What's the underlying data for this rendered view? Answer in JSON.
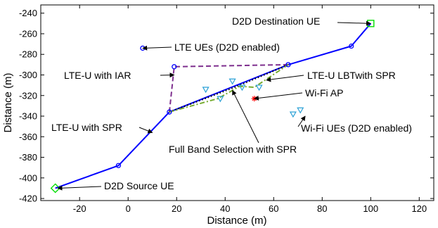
{
  "chart_data": {
    "type": "scatter",
    "xlabel": "Distance (m)",
    "ylabel": "Distance (m)",
    "xlim": [
      -36,
      126
    ],
    "ylim": [
      -422,
      -232
    ],
    "x_ticks": [
      -20,
      0,
      20,
      40,
      60,
      80,
      100,
      120
    ],
    "y_ticks": [
      -420,
      -400,
      -380,
      -360,
      -340,
      -320,
      -300,
      -280,
      -260,
      -240
    ],
    "grid": false,
    "colors": {
      "lte_u_spr": "#0000ff",
      "lte_u_iar": "#7e2f8e",
      "full_band": "#000000",
      "lbt_spr": "#77ac30",
      "wifi_ue": "#2ba1d6",
      "wifi_ap": "#ff0000",
      "endpoint": "#00dd00"
    },
    "series": [
      {
        "name": "LTE-U with SPR",
        "style": "solid",
        "points": [
          [
            -30,
            -410
          ],
          [
            -4,
            -388
          ],
          [
            17,
            -336
          ],
          [
            66,
            -290
          ],
          [
            92,
            -272
          ],
          [
            100,
            -250
          ]
        ]
      },
      {
        "name": "LTE-U with IAR",
        "style": "dashed",
        "points": [
          [
            17,
            -336
          ],
          [
            19,
            -292
          ],
          [
            66,
            -290
          ]
        ]
      },
      {
        "name": "Full Band Selection with SPR",
        "style": "dotted",
        "points": [
          [
            17,
            -336
          ],
          [
            45,
            -311
          ],
          [
            66,
            -290
          ]
        ]
      },
      {
        "name": "LTE-U LBTwith SPR",
        "style": "dashdot",
        "points": [
          [
            17,
            -336
          ],
          [
            37,
            -323
          ],
          [
            46,
            -311
          ],
          [
            52,
            -312
          ],
          [
            66,
            -290
          ]
        ]
      }
    ],
    "lte_ues": [
      [
        6,
        -274
      ],
      [
        19,
        -292
      ],
      [
        66,
        -290
      ],
      [
        92,
        -272
      ]
    ],
    "wifi_ues": [
      [
        32,
        -314
      ],
      [
        38,
        -323
      ],
      [
        43,
        -306
      ],
      [
        47,
        -312
      ],
      [
        54,
        -312
      ],
      [
        68,
        -338
      ],
      [
        71,
        -334
      ]
    ],
    "wifi_ap": [
      52,
      -323
    ],
    "source_ue": [
      -30,
      -410
    ],
    "destination_ue": [
      100,
      -250
    ],
    "annotations": [
      {
        "label": "D2D Destination UE",
        "target": [
          100,
          -250
        ]
      },
      {
        "label": "LTE UEs (D2D enabled)",
        "target": [
          6,
          -274
        ]
      },
      {
        "label": "LTE-U with IAR",
        "target": [
          19,
          -300
        ]
      },
      {
        "label": "LTE-U LBTwith SPR",
        "target": [
          57,
          -305
        ]
      },
      {
        "label": "Wi-Fi AP",
        "target": [
          52,
          -323
        ]
      },
      {
        "label": "LTE-U with SPR",
        "target": [
          10,
          -356
        ]
      },
      {
        "label": "Wi-Fi UEs (D2D enabled)",
        "target": [
          73,
          -340
        ]
      },
      {
        "label": "Full Band Selection with SPR",
        "target": [
          43,
          -315
        ]
      },
      {
        "label": "D2D Source UE",
        "target": [
          -29,
          -410
        ]
      }
    ]
  }
}
